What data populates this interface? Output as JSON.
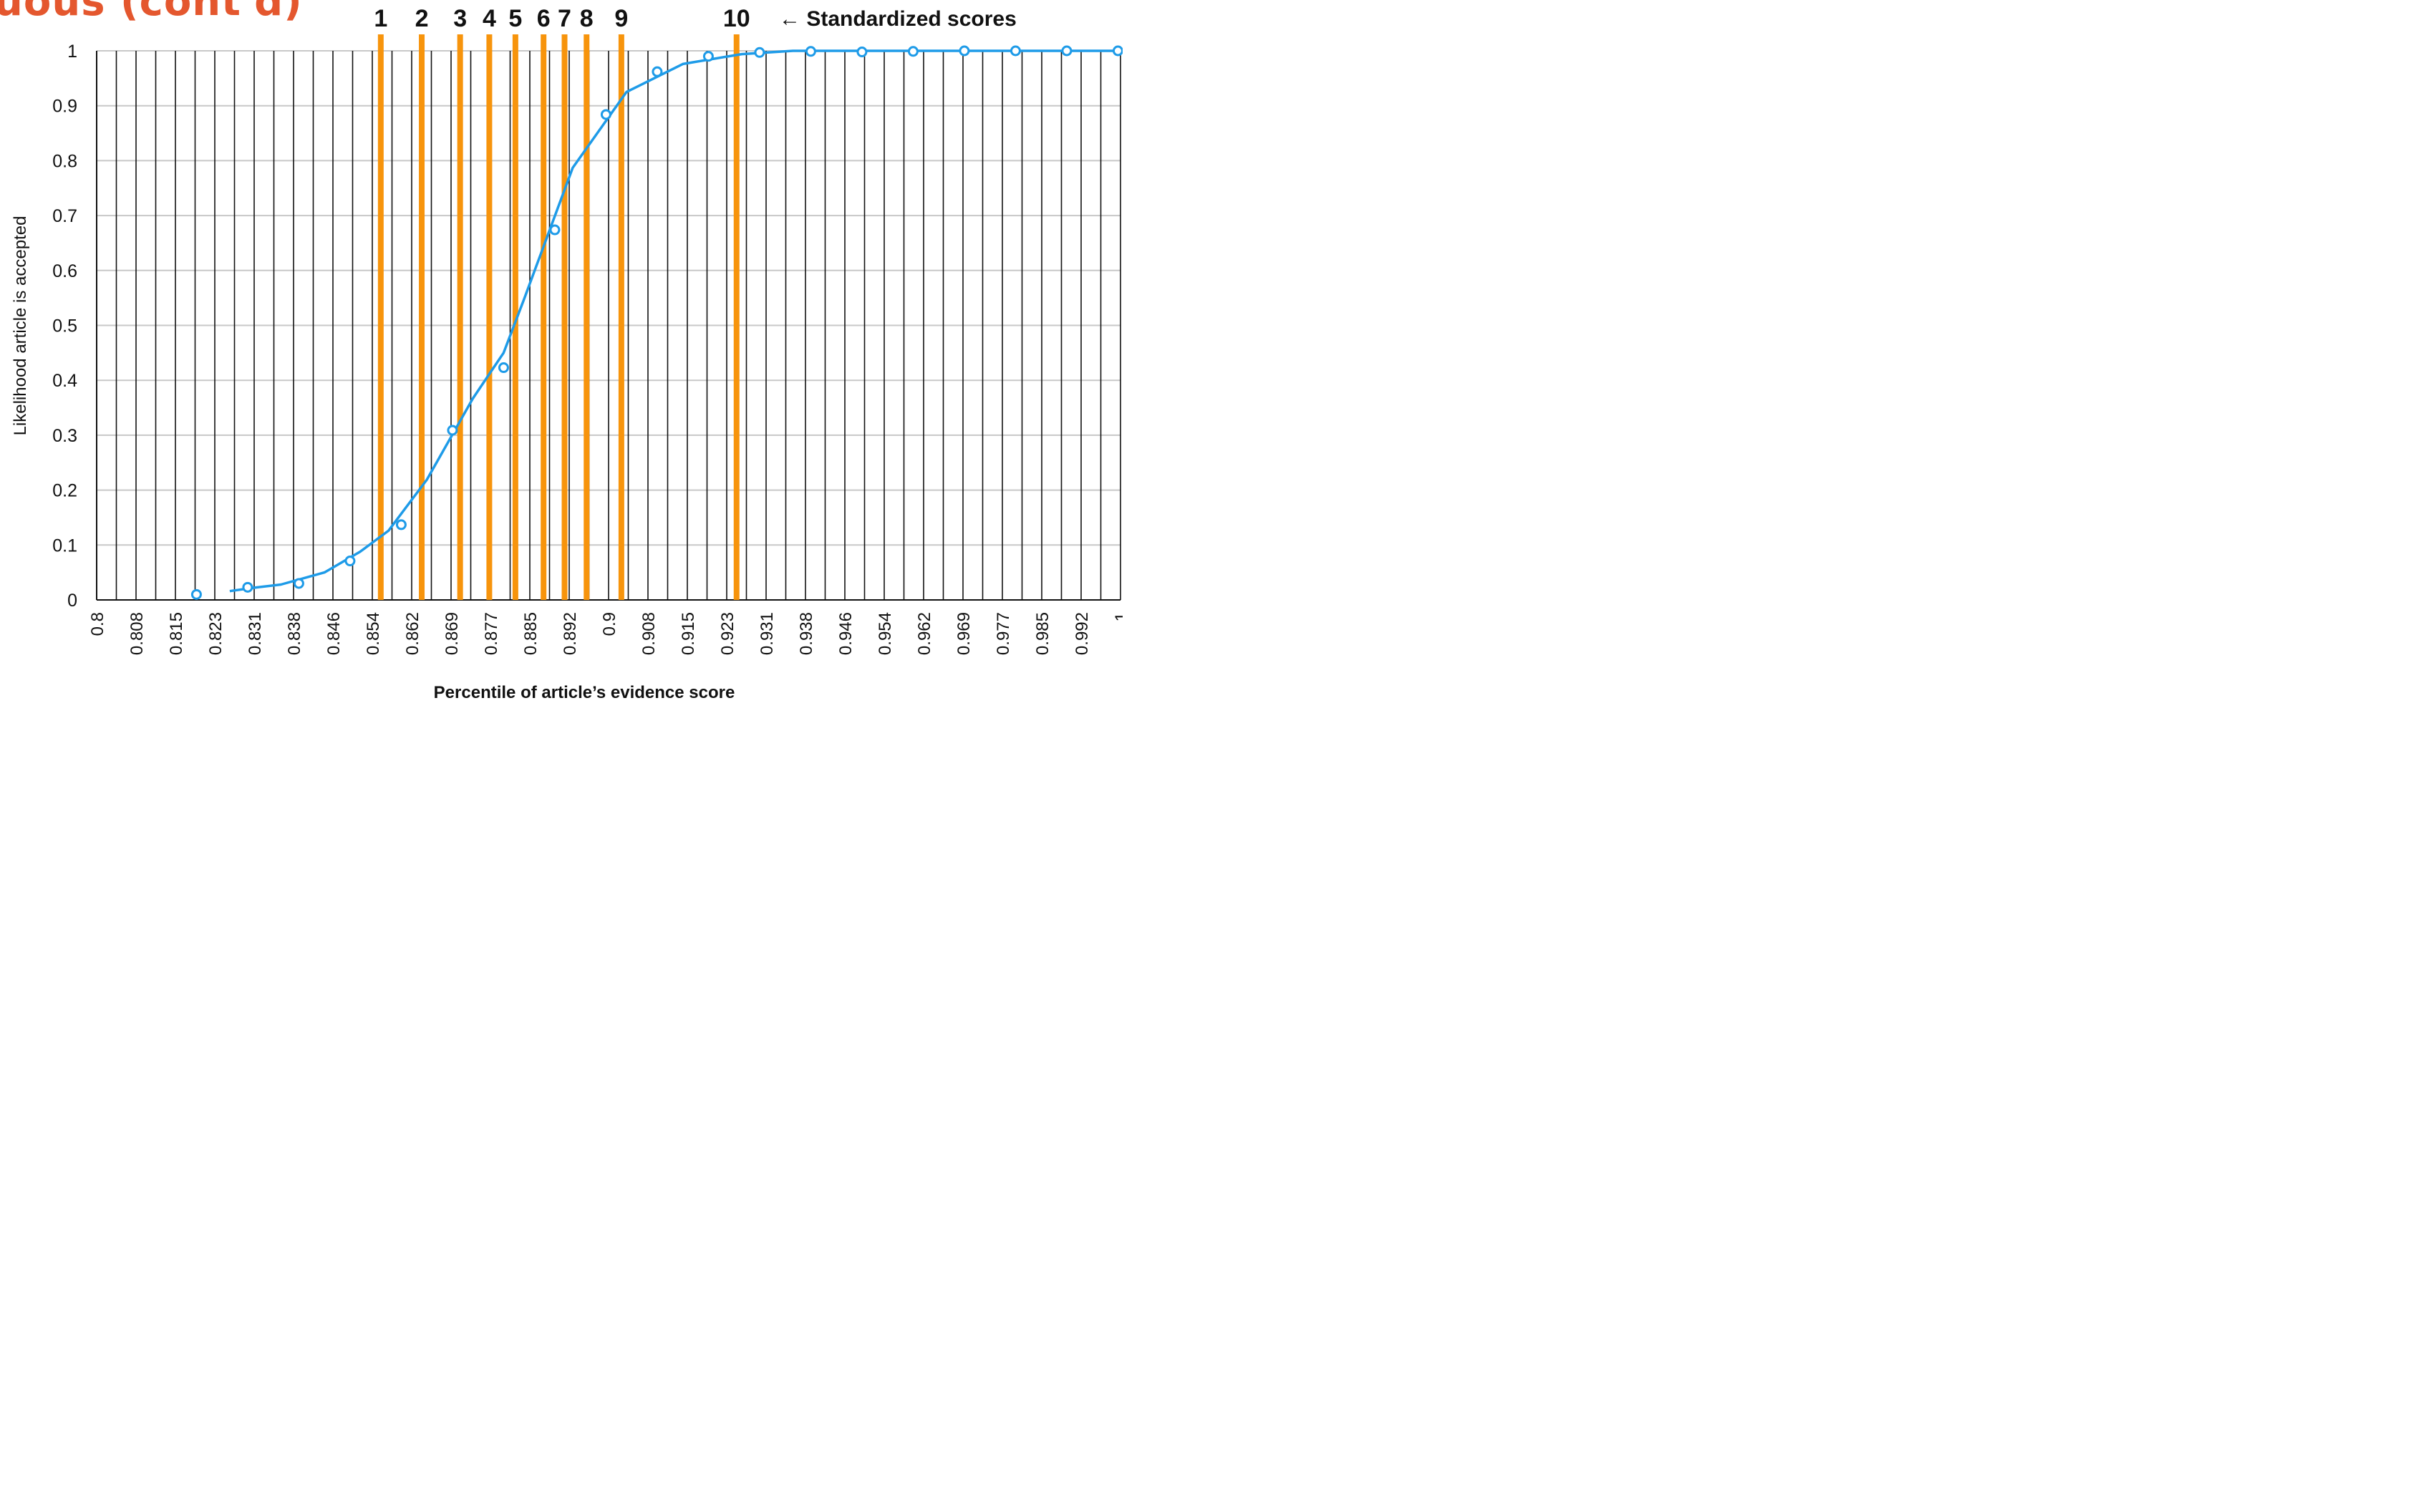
{
  "page_title": "uous (cont'd)",
  "chart_data": {
    "type": "line",
    "title": "",
    "xlabel": "Percentile of article’s evidence score",
    "ylabel": "Likelihood article is accepted",
    "xlim": [
      0.8,
      1.0
    ],
    "ylim": [
      0,
      1
    ],
    "grid": true,
    "x_tick_labels": [
      "0.8",
      "0.808",
      "0.815",
      "0.823",
      "0.831",
      "0.838",
      "0.846",
      "0.854",
      "0.862",
      "0.869",
      "0.877",
      "0.885",
      "0.892",
      "0.9",
      "0.908",
      "0.915",
      "0.923",
      "0.931",
      "0.938",
      "0.946",
      "0.954",
      "0.962",
      "0.969",
      "0.977",
      "0.985",
      "0.992",
      "1"
    ],
    "y_tick_labels": [
      "0",
      "0.1",
      "0.2",
      "0.3",
      "0.4",
      "0.5",
      "0.6",
      "0.7",
      "0.8",
      "0.9",
      "1"
    ],
    "series": [
      {
        "name": "",
        "kind": "points",
        "color": "#1e9be8",
        "points": [
          {
            "x": 0.8195,
            "y": 0.01
          },
          {
            "x": 0.8295,
            "y": 0.023
          },
          {
            "x": 0.8395,
            "y": 0.03
          },
          {
            "x": 0.8495,
            "y": 0.071
          },
          {
            "x": 0.8595,
            "y": 0.137
          },
          {
            "x": 0.8695,
            "y": 0.309
          },
          {
            "x": 0.8795,
            "y": 0.423
          },
          {
            "x": 0.8895,
            "y": 0.674
          },
          {
            "x": 0.8995,
            "y": 0.884
          },
          {
            "x": 0.9095,
            "y": 0.962
          },
          {
            "x": 0.9195,
            "y": 0.99
          },
          {
            "x": 0.9295,
            "y": 0.997
          },
          {
            "x": 0.9395,
            "y": 0.999
          },
          {
            "x": 0.9495,
            "y": 0.998
          },
          {
            "x": 0.9595,
            "y": 0.999
          },
          {
            "x": 0.9695,
            "y": 1.0
          },
          {
            "x": 0.9795,
            "y": 1.0
          },
          {
            "x": 0.9895,
            "y": 1.0
          },
          {
            "x": 0.9995,
            "y": 1.0
          }
        ]
      },
      {
        "name": "",
        "kind": "curve",
        "color": "#1e9be8",
        "points": [
          {
            "x": 0.826,
            "y": 0.016
          },
          {
            "x": 0.8305,
            "y": 0.022
          },
          {
            "x": 0.836,
            "y": 0.028
          },
          {
            "x": 0.8445,
            "y": 0.05
          },
          {
            "x": 0.8515,
            "y": 0.088
          },
          {
            "x": 0.857,
            "y": 0.126
          },
          {
            "x": 0.8645,
            "y": 0.219
          },
          {
            "x": 0.8735,
            "y": 0.367
          },
          {
            "x": 0.8795,
            "y": 0.45
          },
          {
            "x": 0.8835,
            "y": 0.548
          },
          {
            "x": 0.893,
            "y": 0.787
          },
          {
            "x": 0.9035,
            "y": 0.925
          },
          {
            "x": 0.9145,
            "y": 0.976
          },
          {
            "x": 0.926,
            "y": 0.994
          },
          {
            "x": 0.936,
            "y": 1.0
          },
          {
            "x": 0.99,
            "y": 1.0
          },
          {
            "x": 0.9985,
            "y": 1.0
          }
        ]
      }
    ],
    "reference_lines": {
      "color": "#f7940c",
      "lines": [
        {
          "label": "1",
          "x": 0.8555
        },
        {
          "label": "2",
          "x": 0.8635
        },
        {
          "label": "3",
          "x": 0.871
        },
        {
          "label": "4",
          "x": 0.8767
        },
        {
          "label": "5",
          "x": 0.8818
        },
        {
          "label": "6",
          "x": 0.8873
        },
        {
          "label": "7",
          "x": 0.8914
        },
        {
          "label": "8",
          "x": 0.8957
        },
        {
          "label": "9",
          "x": 0.9025
        },
        {
          "label": "10",
          "x": 0.925
        }
      ],
      "annotation": "← Standardized scores"
    },
    "colors": {
      "points": "#1e9be8",
      "curve": "#1e9be8",
      "reference": "#f7940c",
      "title": "#e4572e"
    }
  }
}
